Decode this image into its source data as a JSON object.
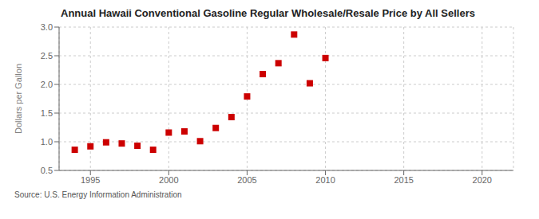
{
  "chart_data": {
    "type": "scatter",
    "title": "Annual Hawaii Conventional Gasoline Regular Wholesale/Resale Price by All Sellers",
    "ylabel": "Dollars per Gallon",
    "annotation": "Source: U.S. Energy Information Administration",
    "x": [
      1994,
      1995,
      1996,
      1997,
      1998,
      1999,
      2000,
      2001,
      2002,
      2003,
      2004,
      2005,
      2006,
      2007,
      2008,
      2009,
      2010
    ],
    "values": [
      0.86,
      0.92,
      0.99,
      0.97,
      0.93,
      0.86,
      1.16,
      1.18,
      1.01,
      1.24,
      1.43,
      1.79,
      2.18,
      2.37,
      2.87,
      2.02,
      2.46
    ],
    "color": "#cc0000",
    "marker": "square",
    "xlim": [
      1993,
      2022
    ],
    "ylim": [
      0.5,
      3.0
    ],
    "xticks": [
      1995,
      2000,
      2005,
      2010,
      2015,
      2020
    ],
    "yticks": [
      0.5,
      {
        "value": 1,
        "label": "1.0"
      },
      1.5,
      {
        "value": 2,
        "label": "2.0"
      },
      2.5,
      {
        "value": 3,
        "label": "3.0"
      }
    ],
    "grid": true
  }
}
